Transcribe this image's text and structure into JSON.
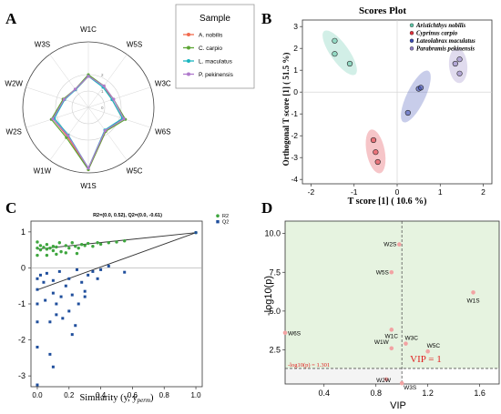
{
  "panels": {
    "A": {
      "letter": "A"
    },
    "B": {
      "letter": "B"
    },
    "C": {
      "letter": "C"
    },
    "D": {
      "letter": "D"
    }
  },
  "colors": {
    "nobilis": "#f26b4f",
    "carpio": "#5ca534",
    "maculatus": "#19b5c0",
    "pekinensis": "#b07acc",
    "q2_blue": "#1f4e9c",
    "r2_green": "#3fa63f",
    "panel_d_bg": "#e6f3e0",
    "threshold_red": "#e02020"
  },
  "chart_data": [
    {
      "panel": "A",
      "type": "radar",
      "legend_title": "Sample",
      "legend_placement": "top-right",
      "axes": [
        "W1C",
        "W5S",
        "W3C",
        "W6S",
        "W5C",
        "W1S",
        "W1W",
        "W2S",
        "W2W",
        "W3S"
      ],
      "ring_labels": [
        "2",
        "1",
        "0"
      ],
      "rmax": 2,
      "series": [
        {
          "name": "A. nobilis",
          "color_key": "nobilis",
          "values": [
            1.0,
            0.85,
            0.8,
            1.15,
            0.95,
            2.0,
            1.15,
            1.2,
            0.85,
            0.7
          ]
        },
        {
          "name": "C. carpio",
          "color_key": "carpio",
          "values": [
            1.05,
            0.85,
            0.85,
            1.25,
            0.95,
            2.0,
            1.2,
            1.25,
            0.85,
            0.72
          ]
        },
        {
          "name": "L. maculatus",
          "color_key": "maculatus",
          "values": [
            1.0,
            0.8,
            0.8,
            1.15,
            0.9,
            1.95,
            1.1,
            1.15,
            0.8,
            0.7
          ]
        },
        {
          "name": "P. pekinensis",
          "color_key": "pekinensis",
          "values": [
            1.0,
            0.85,
            0.85,
            1.2,
            0.92,
            1.95,
            1.12,
            1.2,
            0.82,
            0.72
          ]
        }
      ]
    },
    {
      "panel": "B",
      "type": "scatter",
      "title": "Scores Plot",
      "xlabel": "T score [1] ( 10.6 %)",
      "ylabel": "Orthogonal T score [1] ( 51.5 %)",
      "xlim": [
        -2.2,
        2.2
      ],
      "ylim": [
        -4.2,
        3.3
      ],
      "xticks": [
        -2,
        -1,
        0,
        1,
        2
      ],
      "yticks": [
        -4,
        -3,
        -2,
        -1,
        0,
        1,
        2,
        3
      ],
      "legend_placement": "top-right",
      "series": [
        {
          "name": "Aristichthys nobilis",
          "color": "#5fc6a8",
          "points": [
            [
              -1.45,
              2.35
            ],
            [
              -1.45,
              1.75
            ],
            [
              -1.1,
              1.3
            ]
          ]
        },
        {
          "name": "Cyprinus carpio",
          "color": "#e0303a",
          "points": [
            [
              -0.55,
              -2.2
            ],
            [
              -0.5,
              -2.75
            ],
            [
              -0.45,
              -3.2
            ]
          ]
        },
        {
          "name": "Lateolabrax maculatus",
          "color": "#3a4bb3",
          "points": [
            [
              0.25,
              -0.95
            ],
            [
              0.5,
              0.15
            ],
            [
              0.55,
              0.2
            ]
          ]
        },
        {
          "name": "Parabramis pekinensis",
          "color": "#8e7cc3",
          "points": [
            [
              1.35,
              1.3
            ],
            [
              1.45,
              0.85
            ],
            [
              1.45,
              1.5
            ]
          ]
        }
      ]
    },
    {
      "panel": "C",
      "type": "scatter",
      "annotation": "R2=(0.0, 0.52), Q2=(0.0, -0.61)",
      "xlabel": "Similarity",
      "xlabel_paren": "(y, y",
      "xlabel_sub": "perm",
      "xlabel_close": ")",
      "xlim": [
        -0.04,
        1.04
      ],
      "ylim": [
        -3.3,
        1.3
      ],
      "xticks": [
        "0.0",
        "0.2",
        "0.4",
        "0.6",
        "0.8",
        "1.0"
      ],
      "yticks": [
        "1",
        "0",
        "-1",
        "-2",
        "-3"
      ],
      "legend_placement": "top-right",
      "series": [
        {
          "name": "R2",
          "color_key": "r2_green",
          "points": [
            [
              0.0,
              0.55
            ],
            [
              0.0,
              0.35
            ],
            [
              0.0,
              0.72
            ],
            [
              0.02,
              0.5
            ],
            [
              0.02,
              0.62
            ],
            [
              0.04,
              0.57
            ],
            [
              0.06,
              0.52
            ],
            [
              0.06,
              0.65
            ],
            [
              0.08,
              0.55
            ],
            [
              0.1,
              0.48
            ],
            [
              0.1,
              0.6
            ],
            [
              0.12,
              0.58
            ],
            [
              0.14,
              0.7
            ],
            [
              0.15,
              0.45
            ],
            [
              0.18,
              0.62
            ],
            [
              0.2,
              0.55
            ],
            [
              0.22,
              0.7
            ],
            [
              0.24,
              0.6
            ],
            [
              0.26,
              0.55
            ],
            [
              0.28,
              0.65
            ],
            [
              0.3,
              0.62
            ],
            [
              0.32,
              0.68
            ],
            [
              0.35,
              0.6
            ],
            [
              0.38,
              0.7
            ],
            [
              0.4,
              0.66
            ],
            [
              0.45,
              0.7
            ],
            [
              0.5,
              0.72
            ],
            [
              0.55,
              0.75
            ],
            [
              0.06,
              0.35
            ],
            [
              0.12,
              0.38
            ],
            [
              0.18,
              0.42
            ],
            [
              0.25,
              0.4
            ],
            [
              1.0,
              0.98
            ]
          ]
        },
        {
          "name": "Q2",
          "color_key": "q2_blue",
          "points": [
            [
              0.0,
              -0.6
            ],
            [
              0.0,
              -1.0
            ],
            [
              0.0,
              -1.5
            ],
            [
              0.0,
              -2.2
            ],
            [
              0.0,
              -3.25
            ],
            [
              0.0,
              -0.3
            ],
            [
              0.02,
              -0.2
            ],
            [
              0.04,
              -0.4
            ],
            [
              0.05,
              -0.9
            ],
            [
              0.06,
              -0.15
            ],
            [
              0.08,
              -1.5
            ],
            [
              0.08,
              -2.4
            ],
            [
              0.1,
              -0.35
            ],
            [
              0.1,
              -0.7
            ],
            [
              0.12,
              -1.0
            ],
            [
              0.12,
              -1.3
            ],
            [
              0.14,
              -0.1
            ],
            [
              0.15,
              -0.8
            ],
            [
              0.16,
              -1.4
            ],
            [
              0.18,
              -0.5
            ],
            [
              0.2,
              -0.3
            ],
            [
              0.2,
              -1.2
            ],
            [
              0.22,
              -0.75
            ],
            [
              0.24,
              -1.6
            ],
            [
              0.25,
              -0.05
            ],
            [
              0.26,
              -1.0
            ],
            [
              0.28,
              -0.4
            ],
            [
              0.3,
              -0.8
            ],
            [
              0.32,
              -0.2
            ],
            [
              0.35,
              -0.1
            ],
            [
              0.38,
              -0.3
            ],
            [
              0.4,
              -0.05
            ],
            [
              0.45,
              0.05
            ],
            [
              0.55,
              -0.12
            ],
            [
              0.3,
              -0.65
            ],
            [
              0.22,
              -1.85
            ],
            [
              0.1,
              -2.75
            ],
            [
              1.0,
              0.98
            ]
          ]
        }
      ],
      "regression_lines": [
        {
          "name": "R2",
          "from": [
            0.0,
            0.52
          ],
          "to": [
            1.0,
            0.98
          ]
        },
        {
          "name": "Q2",
          "from": [
            0.0,
            -0.61
          ],
          "to": [
            1.0,
            0.98
          ]
        }
      ]
    },
    {
      "panel": "D",
      "type": "scatter",
      "xlabel": "VIP",
      "ylabel": "-log10(p)",
      "xlim": [
        0.1,
        1.75
      ],
      "ylim": [
        0.3,
        10.8
      ],
      "xticks": [
        "0.4",
        "0.8",
        "1.2",
        "1.6"
      ],
      "yticks": [
        "2.5",
        "5.0",
        "7.5",
        "10.0"
      ],
      "vip_threshold": 1.0,
      "vip_threshold_label": "VIP = 1",
      "p_threshold": 1.301,
      "p_threshold_label": "-log10(p) = 1.301",
      "points": [
        {
          "label": "W2S",
          "x": 0.98,
          "y": 9.3
        },
        {
          "label": "W5S",
          "x": 0.92,
          "y": 7.5
        },
        {
          "label": "W1S",
          "x": 1.55,
          "y": 6.2
        },
        {
          "label": "W1C",
          "x": 0.92,
          "y": 3.8
        },
        {
          "label": "W3C",
          "x": 1.03,
          "y": 2.9
        },
        {
          "label": "W5C",
          "x": 1.2,
          "y": 2.4
        },
        {
          "label": "W1W",
          "x": 0.92,
          "y": 2.6
        },
        {
          "label": "W6S",
          "x": 0.1,
          "y": 3.6
        },
        {
          "label": "W2W",
          "x": 0.88,
          "y": 0.6
        },
        {
          "label": "W3S",
          "x": 1.0,
          "y": 0.35
        }
      ]
    }
  ]
}
